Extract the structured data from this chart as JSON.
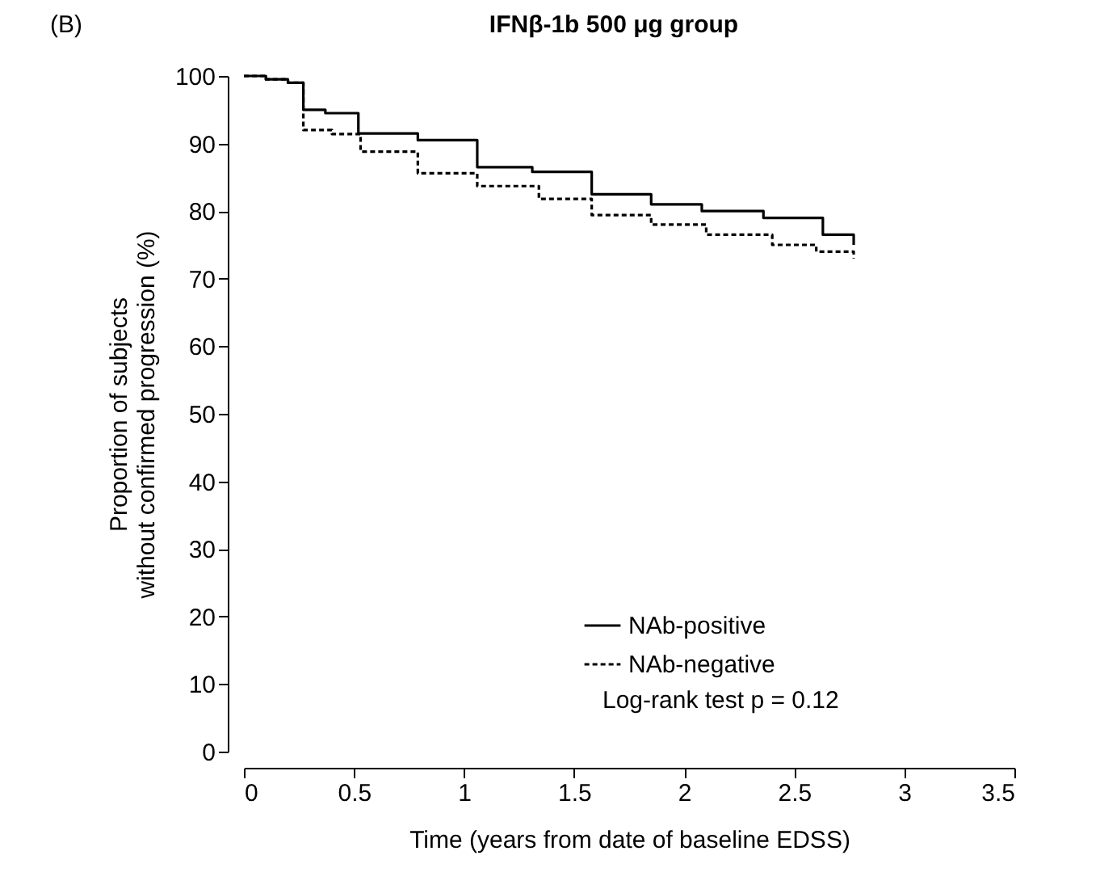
{
  "chart_data": {
    "type": "step",
    "title": "IFNβ-1b 500 μg group",
    "xlabel": "Time (years from date of baseline EDSS)",
    "ylabel": "Proportion of subjects\nwithout confirmed progression (%)",
    "annotations": [
      "(B)",
      "Log-rank test p = 0.12"
    ],
    "series": [
      {
        "name": "NAb-positive",
        "color": "#000000",
        "line_style": "solid",
        "x": [
          0,
          0.1,
          0.2,
          0.27,
          0.37,
          0.52,
          0.79,
          1.06,
          1.31,
          1.58,
          1.85,
          2.08,
          2.36,
          2.63,
          2.77
        ],
        "values": [
          100,
          99.5,
          99,
          95,
          94.5,
          91.5,
          90.5,
          86.5,
          85.8,
          82.5,
          81,
          80,
          79,
          76.5,
          75
        ]
      },
      {
        "name": "NAb-negative",
        "color": "#000000",
        "line_style": "dashed",
        "x": [
          0,
          0.1,
          0.2,
          0.27,
          0.4,
          0.53,
          0.79,
          1.06,
          1.34,
          1.58,
          1.85,
          2.1,
          2.4,
          2.6,
          2.77
        ],
        "values": [
          100,
          99.5,
          99,
          92,
          91.4,
          88.8,
          85.6,
          83.7,
          81.8,
          79.4,
          78,
          76.5,
          75,
          74,
          73
        ]
      }
    ],
    "xlim": [
      0,
      3.5
    ],
    "xticks": [
      0,
      0.5,
      1,
      1.5,
      2,
      2.5,
      3,
      3.5
    ],
    "ylim": [
      0,
      100
    ],
    "yticks": [
      0,
      10,
      20,
      30,
      40,
      50,
      60,
      70,
      80,
      90,
      100
    ],
    "grid": false,
    "legend": "bottom right"
  }
}
